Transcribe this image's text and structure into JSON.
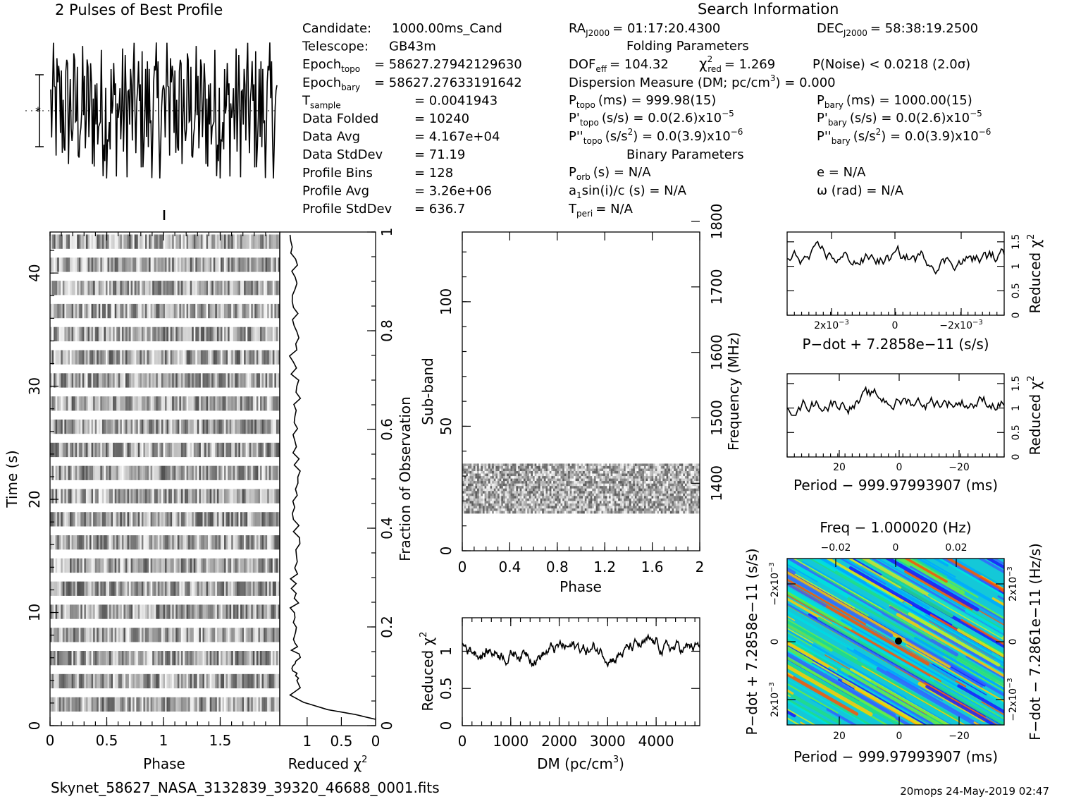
{
  "window": {
    "footer_file": "Skynet_58627_NASA_3132839_39320_46688_0001.fits",
    "footer_stamp": "20mops 24-May-2019 02:47"
  },
  "profile": {
    "title": "2 Pulses of Best Profile"
  },
  "info": {
    "search_title": "Search Information",
    "left_rows": [
      {
        "label": "Candidate:",
        "value": "1000.00ms_Cand"
      },
      {
        "label": "Telescope:",
        "value": "GB43m"
      },
      {
        "label": "Epoch",
        "sub": "topo",
        "value": "= 58627.27942129630"
      },
      {
        "label": "Epoch",
        "sub": "bary",
        "value": "= 58627.27633191642"
      },
      {
        "label": "T",
        "sub": "sample",
        "value": "=   0.0041943"
      },
      {
        "label": "Data Folded",
        "value": "=   10240"
      },
      {
        "label": "Data Avg",
        "value": "=   4.167e+04"
      },
      {
        "label": "Data StdDev",
        "value": "=   71.19"
      },
      {
        "label": "Profile Bins",
        "value": "=   128"
      },
      {
        "label": "Profile Avg",
        "value": "=   3.26e+06"
      },
      {
        "label": "Profile StdDev",
        "value": "=   636.7"
      }
    ],
    "ra": {
      "label": "RA",
      "sub": "J2000",
      "value": "= 01:17:20.4300"
    },
    "dec": {
      "label": "DEC",
      "sub": "J2000",
      "value": "= 58:38:19.2500"
    },
    "folding_title": "Folding Parameters",
    "dof": {
      "label": "DOF",
      "sub": "eff",
      "value": "= 104.32"
    },
    "chi": {
      "label": "χ",
      "sup": "2",
      "sub": "red",
      "value": "= 1.269"
    },
    "pnoise": "P(Noise) < 0.0218   (2.0σ)",
    "dm_line": {
      "pre": "Dispersion Measure (DM; pc/cm",
      "sup": "3",
      "post": ") = 0.000"
    },
    "ptopo": {
      "label": "P",
      "sub": "topo",
      "value": "(ms) =  999.98(15)"
    },
    "pbary": {
      "label": "P",
      "sub": "bary",
      "value": "(ms) =  1000.00(15)"
    },
    "pdtopo": {
      "label": "P'",
      "sub": "topo",
      "value": "(s/s) = 0.0(2.6)x10",
      "exp": "−5"
    },
    "pdbary": {
      "label": "P'",
      "sub": "bary",
      "value": "(s/s) = 0.0(2.6)x10",
      "exp": "−5"
    },
    "pddtopo": {
      "label": "P''",
      "sub": "topo",
      "value": "(s/s",
      "unitsup": "2",
      "tail": ") = 0.0(3.9)x10",
      "exp": "−6"
    },
    "pddbary": {
      "label": "P''",
      "sub": "bary",
      "value": "(s/s",
      "unitsup": "2",
      "tail": ") = 0.0(3.9)x10",
      "exp": "−6"
    },
    "binary_title": "Binary Parameters",
    "porb": {
      "label": "P",
      "sub": "orb",
      "value": "(s) = N/A"
    },
    "ecc": "e = N/A",
    "a1": {
      "label": "a",
      "sub": "1",
      "value": "sin(i)/c (s) = N/A"
    },
    "omega": "ω (rad) = N/A",
    "tperi": {
      "label": "T",
      "sub": "peri",
      "value": "= N/A"
    }
  },
  "chart_data": [
    {
      "id": "profile",
      "type": "line",
      "title": "2 Pulses of Best Profile",
      "bins": 256,
      "yrange": [
        -3.2,
        3.2
      ],
      "grid": false
    },
    {
      "id": "time_phase",
      "type": "heatmap",
      "xlabel": "Phase",
      "ylabel": "Time (s)",
      "x_ticks": [
        "0",
        "0.5",
        "1",
        "1.5"
      ],
      "x_tick_values": [
        0,
        0.5,
        1,
        1.5
      ],
      "xlim": [
        0,
        2
      ],
      "y_ticks": [
        "0",
        "10",
        "20",
        "30",
        "40"
      ],
      "y_tick_values": [
        0,
        10,
        20,
        30,
        40
      ],
      "ylim": [
        0,
        43
      ],
      "right_label": "Fraction of Observation",
      "right_ticks": [
        "0",
        "0.2",
        "0.4",
        "0.6",
        "0.8",
        "1"
      ],
      "right_tick_values": [
        0,
        0.2,
        0.4,
        0.6,
        0.8,
        1
      ],
      "rows": 21
    },
    {
      "id": "time_chi",
      "type": "line",
      "xlabel": "Reduced χ",
      "xlabel_sup": "2",
      "x_ticks": [
        "1",
        "0.5",
        "0"
      ],
      "x_tick_values": [
        1,
        0.5,
        0
      ],
      "xlim": [
        0,
        1.4
      ],
      "reversed": true,
      "ylim": [
        0,
        1
      ],
      "series": [
        {
          "y": [
            0.0,
            0.01,
            0.02,
            0.035,
            0.05,
            0.065,
            0.08,
            0.1,
            0.12,
            0.15,
            0.18,
            0.22,
            0.26,
            0.3,
            0.35,
            0.4,
            0.45,
            0.5,
            0.55,
            0.6,
            0.65,
            0.7,
            0.75,
            0.8,
            0.85,
            0.9,
            0.95,
            1.0
          ],
          "x": [
            0.0,
            0.3,
            0.7,
            1.05,
            1.25,
            1.1,
            1.15,
            1.2,
            1.15,
            1.18,
            1.22,
            1.2,
            1.17,
            1.2,
            1.15,
            1.18,
            1.2,
            1.14,
            1.18,
            1.2,
            1.15,
            1.17,
            1.2,
            1.16,
            1.19,
            1.15,
            1.18,
            1.2
          ]
        }
      ]
    },
    {
      "id": "subband_phase",
      "type": "heatmap",
      "xlabel": "Phase",
      "ylabel": "Sub-band",
      "x_ticks": [
        "0",
        "0.4",
        "0.8",
        "1.2",
        "1.6",
        "2"
      ],
      "x_tick_values": [
        0,
        0.4,
        0.8,
        1.2,
        1.6,
        2
      ],
      "xlim": [
        0,
        2
      ],
      "y_ticks": [
        "0",
        "50",
        "100"
      ],
      "y_tick_values": [
        0,
        50,
        100
      ],
      "ylim": [
        0,
        128
      ],
      "right_label": "Frequency (MHz)",
      "right_ticks": [
        "1400",
        "1500",
        "1600",
        "1700",
        "1800"
      ],
      "right_tick_values": [
        1400,
        1500,
        1600,
        1700,
        1800
      ],
      "right_lim": [
        1340,
        1800
      ],
      "occupied_subbands": [
        15,
        35
      ]
    },
    {
      "id": "dm_chi",
      "type": "line",
      "xlabel": "DM (pc/cm",
      "xlabel_sup": "3",
      "xlabel_tail": ")",
      "ylabel": "Reduced χ",
      "ylabel_sup": "2",
      "x_ticks": [
        "0",
        "1000",
        "2000",
        "3000",
        "4000"
      ],
      "x_tick_values": [
        0,
        1000,
        2000,
        3000,
        4000
      ],
      "xlim": [
        0,
        4900
      ],
      "y_ticks": [
        "0",
        "0.5",
        "1"
      ],
      "y_tick_values": [
        0,
        0.5,
        1
      ],
      "ylim": [
        0,
        1.45
      ]
    },
    {
      "id": "pdot_chi",
      "type": "line",
      "xlabel": "P−dot + 7.2858e−11 (s/s)",
      "ylabel": "Reduced χ",
      "ylabel_sup": "2",
      "x_ticks": [
        "2x10",
        "0",
        "−2x10"
      ],
      "x_tick_exp": "−3",
      "y_ticks": [
        "0",
        "0.5",
        "1",
        "1.5"
      ],
      "y_tick_values": [
        0,
        0.5,
        1,
        1.5
      ],
      "ylim": [
        0,
        1.7
      ]
    },
    {
      "id": "period_chi",
      "type": "line",
      "xlabel": "Period − 999.97993907 (ms)",
      "ylabel": "Reduced χ",
      "ylabel_sup": "2",
      "x_ticks": [
        "20",
        "0",
        "−20"
      ],
      "x_tick_values": [
        20,
        0,
        -20
      ],
      "xlim": [
        36,
        -36
      ],
      "y_ticks": [
        "0",
        "0.5",
        "1",
        "1.5"
      ],
      "y_tick_values": [
        0,
        0.5,
        1,
        1.5
      ],
      "ylim": [
        0,
        1.7
      ]
    },
    {
      "id": "p_pdot",
      "type": "heatmap",
      "top_label": "Freq − 1.000020 (Hz)",
      "top_ticks": [
        "−0.02",
        "0",
        "0.02"
      ],
      "top_tick_values": [
        -0.02,
        0,
        0.02
      ],
      "xlabel": "Period − 999.97993907 (ms)",
      "x_ticks": [
        "20",
        "0",
        "−20"
      ],
      "x_tick_values": [
        20,
        0,
        -20
      ],
      "xlim": [
        36,
        -36
      ],
      "ylabel": "P−dot + 7.2858e−11 (s/s)",
      "y_ticks": [
        "−2x10",
        "0",
        "2x10"
      ],
      "y_tick_exp": "−3",
      "right_label": "F−dot − 7.2861e−11 (Hz/s)",
      "right_ticks": [
        "2x10",
        "0",
        "−2x10"
      ],
      "right_tick_exp": "−3",
      "colors": [
        "#1a1aff",
        "#3366ff",
        "#00aaff",
        "#00e0e0",
        "#22dd88",
        "#66ee44",
        "#ccee22",
        "#ffcc00",
        "#ff5500"
      ]
    }
  ]
}
